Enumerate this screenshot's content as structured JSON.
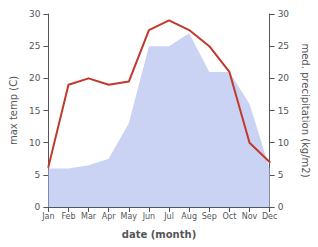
{
  "chart_data": {
    "type": "line",
    "xlabel": "date (month)",
    "ylabel": "max temp (C)",
    "y2label": "med. precipitation (kg/m2)",
    "categories": [
      "Jan",
      "Feb",
      "Mar",
      "Apr",
      "May",
      "Jun",
      "Jul",
      "Aug",
      "Sep",
      "Oct",
      "Nov",
      "Dec"
    ],
    "series": [
      {
        "type": "area",
        "axis": "y2",
        "color": "#b8c4f0",
        "values": [
          6.0,
          6.0,
          6.5,
          7.5,
          13.0,
          25.0,
          25.0,
          27.0,
          21.0,
          21.0,
          16.0,
          6.0
        ]
      },
      {
        "type": "line",
        "color": "#c0392b",
        "values": [
          6.2,
          19.0,
          20.0,
          19.0,
          19.5,
          27.5,
          29.0,
          27.5,
          25.0,
          21.0,
          10.0,
          7.0
        ]
      }
    ],
    "ylim": [
      0,
      30
    ],
    "yticks": [
      0,
      5,
      10,
      15,
      20,
      25,
      30
    ],
    "y2lim": [
      0,
      30
    ],
    "y2ticks": [
      0,
      5,
      10,
      15,
      20,
      25,
      30
    ],
    "grid": false
  }
}
